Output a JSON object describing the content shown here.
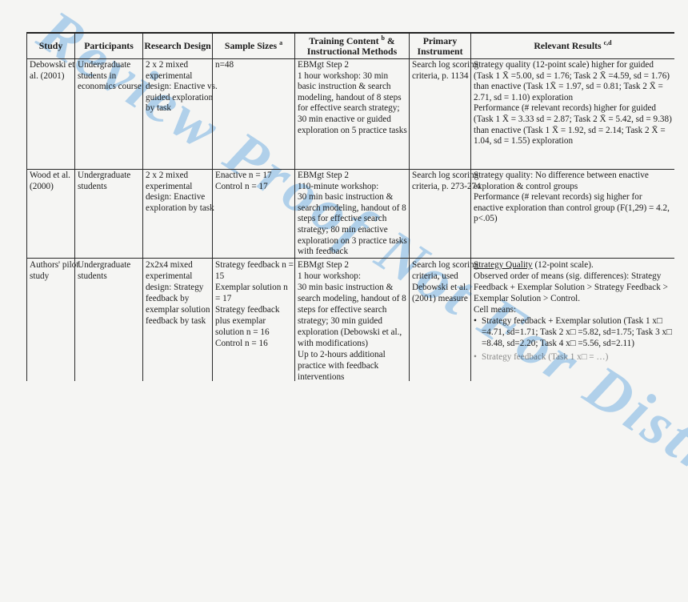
{
  "page": {
    "background": "#f5f5f3"
  },
  "watermark": {
    "text": "Review Proof Not For Distribution",
    "color": "#9fc8e8"
  },
  "table": {
    "bullet_char": "•",
    "headers": {
      "study": "Study",
      "participants": "Participants",
      "design": "Research Design",
      "samples": "Sample Sizes",
      "samples_sup": "a",
      "training_line1": "Training Content",
      "training_sup": "b",
      "training_line1_tail": " &",
      "training_line2": "Instructional Methods",
      "instrument_line1": "Primary",
      "instrument_line2": "Instrument",
      "results": "Relevant Results",
      "results_sup": "c,d"
    },
    "rows": [
      {
        "study": "Debowski et al. (2001)",
        "participants": "Undergraduate students in economics course",
        "design": "2 x 2 mixed experimental design: Enactive vs. guided exploration by task",
        "samples": [
          "n=48"
        ],
        "training": [
          "EBMgt Step 2",
          "1 hour workshop: 30 min basic instruction & search modeling, handout of 8 steps for effective search strategy; 30 min enactive or guided exploration on 5 practice tasks"
        ],
        "instrument": "Search log scoring criteria, p. 1134",
        "results": [
          "Strategy quality (12-point scale) higher for guided (Task 1 X̄ =5.00, sd = 1.76; Task 2 X̄ =4.59, sd = 1.76) than enactive (Task 1X̄ = 1.97, sd = 0.81; Task 2 X̄ = 2.71, sd = 1.10) exploration",
          "Performance (# relevant records) higher for guided (Task 1 X̄ = 3.33 sd = 2.87; Task 2 X̄ = 5.42, sd = 9.38) than enactive (Task 1 X̄ = 1.92, sd = 2.14; Task 2 X̄ = 1.04, sd = 1.55) exploration"
        ]
      },
      {
        "study": "Wood et al. (2000)",
        "participants": "Undergraduate students",
        "design": "2 x 2 mixed experimental design: Enactive exploration by task",
        "samples": [
          "Enactive n = 17",
          "Control n = 17"
        ],
        "training": [
          "EBMgt Step 2",
          "110-minute workshop:",
          "30 min basic instruction & search modeling, handout of 8 steps for effective search strategy; 80 min enactive exploration on 3 practice tasks with feedback"
        ],
        "instrument": "Search log scoring criteria, p. 273-274",
        "results": [
          "Strategy quality: No difference between enactive exploration & control groups",
          "Performance (# relevant records) sig higher for enactive exploration than control group (F(1,29) = 4.2, p<.05)"
        ]
      },
      {
        "study": "Authors' pilot study",
        "participants": "Undergraduate students",
        "design": "2x2x4 mixed experimental design: Strategy feedback by exemplar solution feedback by task",
        "samples": [
          "Strategy feedback n = 15",
          "Exemplar solution n = 17",
          "Strategy feedback plus exemplar solution n = 16",
          "Control n = 16"
        ],
        "training": [
          "EBMgt Step 2",
          "1 hour workshop:",
          "30 min basic instruction & search modeling, handout of 8 steps for effective search strategy; 30 min guided exploration (Debowski et al., with modifications)",
          "Up to 2-hours additional practice with feedback interventions"
        ],
        "instrument": "Search log scoring criteria, used Debowski et al. (2001) measure",
        "results_head": "Strategy Quality",
        "results_head_rest": " (12-point scale).",
        "results_order": "Observed order of means (sig. differences): Strategy Feedback + Exemplar Solution > Strategy Feedback > Exemplar Solution > Control.",
        "cell_means_label": "Cell means:",
        "bullets": [
          "Strategy feedback + Exemplar solution (Task 1 x□ =4.71, sd=1.71; Task 2 x□ =5.82, sd=1.75; Task 3 x□ =8.48, sd=2.20; Task 4 x□ =5.56, sd=2.11)",
          "Strategy feedback (Task 1 x□ = …)"
        ]
      }
    ]
  }
}
